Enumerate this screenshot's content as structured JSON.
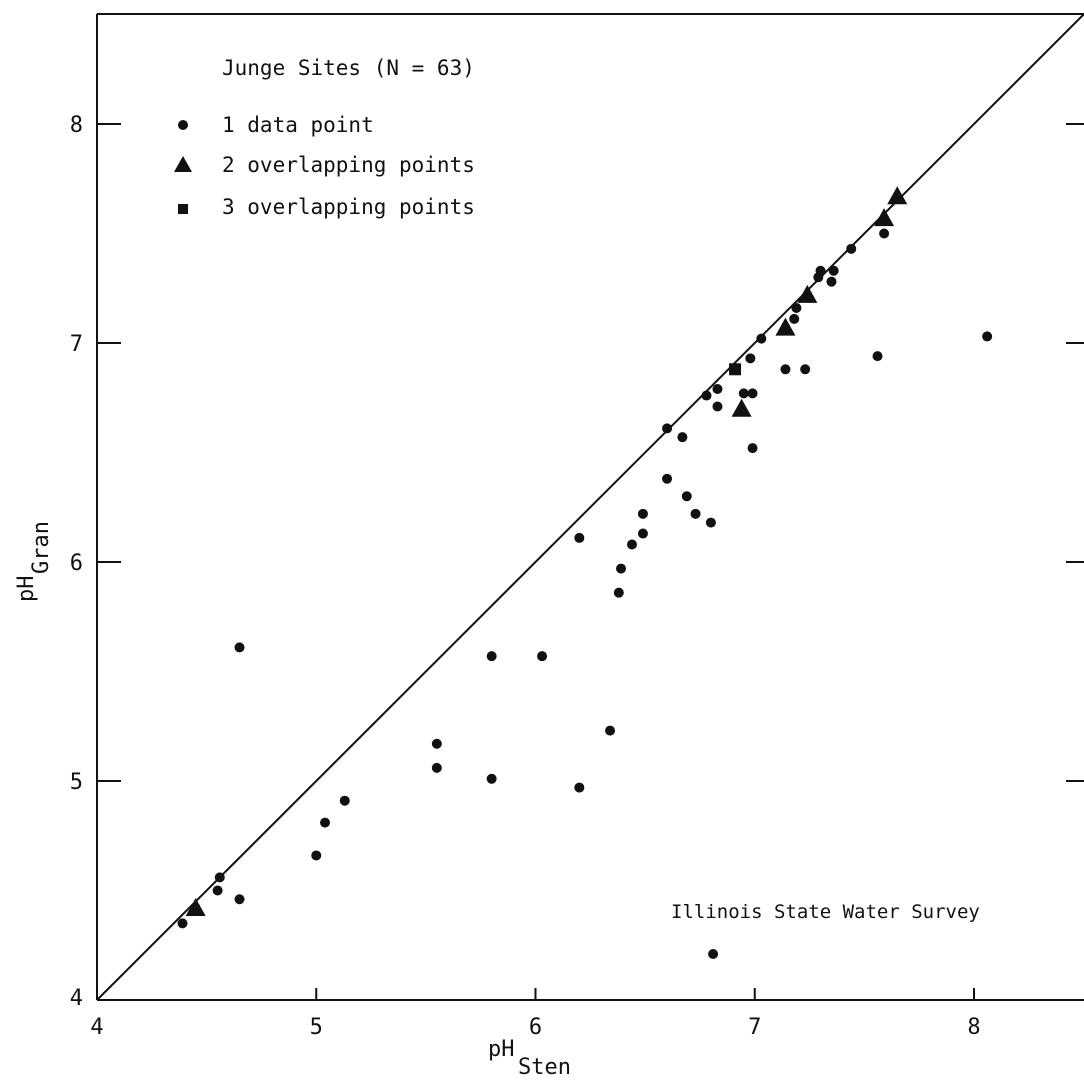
{
  "chart_data": {
    "type": "scatter",
    "xlabel": "pH",
    "xlabel_sub": "Sten",
    "ylabel": "pH",
    "ylabel_sub": "Gran",
    "xlim": [
      4,
      8.5
    ],
    "ylim": [
      4,
      8.5
    ],
    "x_ticks": [
      4,
      5,
      6,
      7,
      8
    ],
    "y_ticks": [
      4,
      5,
      6,
      7,
      8
    ],
    "x_tick_labels": [
      "4",
      "5",
      "6",
      "7",
      "8"
    ],
    "y_tick_labels": [
      "4",
      "5",
      "6",
      "7",
      "8"
    ],
    "grid": false,
    "reference_line": {
      "type": "1:1",
      "from": [
        4,
        4
      ],
      "to": [
        8.5,
        8.5
      ]
    },
    "legend": {
      "title": "Junge Sites (N = 63)",
      "placement": "top-left",
      "entries": [
        {
          "marker": "circle",
          "label": "1 data point"
        },
        {
          "marker": "triangle",
          "label": "2 overlapping points"
        },
        {
          "marker": "square",
          "label": "3 overlapping points"
        }
      ]
    },
    "annotation": "Illinois State Water Survey",
    "series": [
      {
        "marker": "circle",
        "points": [
          [
            4.39,
            4.35
          ],
          [
            4.55,
            4.5
          ],
          [
            4.56,
            4.56
          ],
          [
            4.65,
            4.46
          ],
          [
            4.65,
            5.61
          ],
          [
            5.0,
            4.66
          ],
          [
            5.04,
            4.81
          ],
          [
            5.13,
            4.91
          ],
          [
            5.55,
            5.17
          ],
          [
            5.55,
            5.06
          ],
          [
            5.8,
            5.57
          ],
          [
            5.8,
            5.01
          ],
          [
            6.03,
            5.57
          ],
          [
            6.2,
            6.11
          ],
          [
            6.2,
            4.97
          ],
          [
            6.34,
            5.23
          ],
          [
            6.38,
            5.86
          ],
          [
            6.39,
            5.97
          ],
          [
            6.44,
            6.08
          ],
          [
            6.49,
            6.22
          ],
          [
            6.49,
            6.13
          ],
          [
            6.6,
            6.61
          ],
          [
            6.6,
            6.38
          ],
          [
            6.67,
            6.57
          ],
          [
            6.69,
            6.3
          ],
          [
            6.73,
            6.22
          ],
          [
            6.78,
            6.76
          ],
          [
            6.8,
            6.18
          ],
          [
            6.83,
            6.71
          ],
          [
            6.83,
            6.79
          ],
          [
            6.95,
            6.77
          ],
          [
            6.98,
            6.93
          ],
          [
            6.99,
            6.77
          ],
          [
            6.99,
            6.52
          ],
          [
            7.03,
            7.02
          ],
          [
            6.81,
            4.21
          ],
          [
            7.14,
            6.88
          ],
          [
            7.18,
            7.11
          ],
          [
            7.19,
            7.16
          ],
          [
            7.23,
            6.88
          ],
          [
            7.29,
            7.3
          ],
          [
            7.3,
            7.33
          ],
          [
            7.35,
            7.28
          ],
          [
            7.36,
            7.33
          ],
          [
            7.44,
            7.43
          ],
          [
            7.56,
            6.94
          ],
          [
            7.59,
            7.5
          ],
          [
            8.06,
            7.03
          ]
        ]
      },
      {
        "marker": "triangle",
        "points": [
          [
            4.45,
            4.42
          ],
          [
            6.94,
            6.7
          ],
          [
            7.14,
            7.07
          ],
          [
            7.24,
            7.22
          ],
          [
            7.59,
            7.57
          ],
          [
            7.65,
            7.67
          ]
        ]
      },
      {
        "marker": "square",
        "points": [
          [
            6.91,
            6.88
          ]
        ]
      }
    ]
  }
}
